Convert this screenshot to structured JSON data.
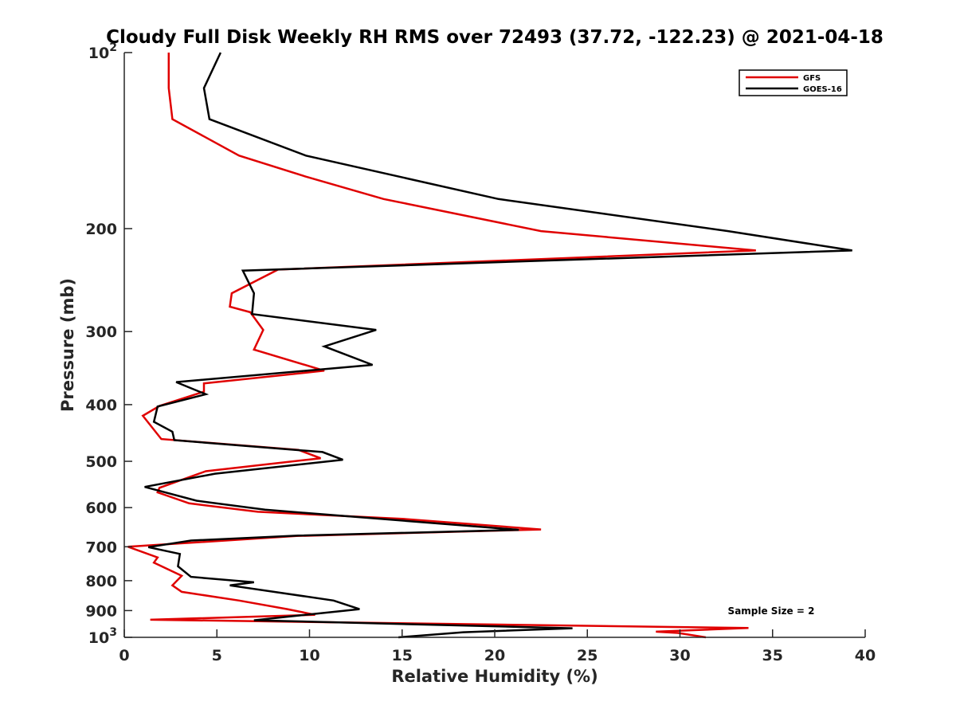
{
  "chart_data": {
    "type": "line",
    "title": "Cloudy Full Disk Weekly RH RMS over 72493 (37.72, -122.23) @ 2021-04-18",
    "xlabel": "Relative Humidity (%)",
    "ylabel": "Pressure (mb)",
    "xlim": [
      0,
      40
    ],
    "ylim": [
      100,
      1000
    ],
    "yscale": "log",
    "y_reversed": true,
    "grid": false,
    "legend_position": "top-right",
    "x_ticks": [
      0,
      5,
      10,
      15,
      20,
      25,
      30,
      35,
      40
    ],
    "y_ticks": [
      {
        "value": 100,
        "label": "10",
        "sup": "2"
      },
      {
        "value": 200,
        "label": "200"
      },
      {
        "value": 300,
        "label": "300"
      },
      {
        "value": 400,
        "label": "400"
      },
      {
        "value": 500,
        "label": "500"
      },
      {
        "value": 600,
        "label": "600"
      },
      {
        "value": 700,
        "label": "700"
      },
      {
        "value": 800,
        "label": "800"
      },
      {
        "value": 900,
        "label": "900"
      },
      {
        "value": 1000,
        "label": "10",
        "sup": "3"
      }
    ],
    "annotation": "Sample Size = 2",
    "series": [
      {
        "name": "GFS",
        "color": "#e00000",
        "points": [
          [
            2.4,
            100
          ],
          [
            2.4,
            115
          ],
          [
            2.6,
            130
          ],
          [
            6.2,
            150
          ],
          [
            9.8,
            163
          ],
          [
            14,
            178
          ],
          [
            22.5,
            202
          ],
          [
            34.1,
            218
          ],
          [
            8.3,
            235
          ],
          [
            5.8,
            258
          ],
          [
            5.7,
            272
          ],
          [
            6.8,
            278
          ],
          [
            7.5,
            298
          ],
          [
            7.0,
            322
          ],
          [
            10.8,
            350
          ],
          [
            4.3,
            368
          ],
          [
            4.3,
            380
          ],
          [
            1.9,
            402
          ],
          [
            1.0,
            418
          ],
          [
            2.0,
            458
          ],
          [
            9.4,
            478
          ],
          [
            10.6,
            494
          ],
          [
            4.4,
            520
          ],
          [
            1.9,
            555
          ],
          [
            1.8,
            565
          ],
          [
            3.5,
            590
          ],
          [
            7.2,
            610
          ],
          [
            15,
            627
          ],
          [
            22.5,
            654
          ],
          [
            9.3,
            671
          ],
          [
            0.2,
            700
          ],
          [
            1.8,
            730
          ],
          [
            1.6,
            745
          ],
          [
            3.1,
            785
          ],
          [
            2.6,
            815
          ],
          [
            3.1,
            836
          ],
          [
            6.2,
            865
          ],
          [
            8.8,
            895
          ],
          [
            10.3,
            915
          ],
          [
            1.4,
            933
          ],
          [
            33.7,
            964
          ],
          [
            28.7,
            978
          ],
          [
            29.9,
            983
          ],
          [
            31.4,
            1000
          ]
        ]
      },
      {
        "name": "GOES-16",
        "color": "#000000",
        "points": [
          [
            5.2,
            100
          ],
          [
            4.3,
            115
          ],
          [
            4.6,
            130
          ],
          [
            9.8,
            150
          ],
          [
            20.2,
            178
          ],
          [
            32.6,
            202
          ],
          [
            39.3,
            218
          ],
          [
            6.4,
            236
          ],
          [
            7.0,
            258
          ],
          [
            6.9,
            280
          ],
          [
            13.6,
            298
          ],
          [
            10.8,
            318
          ],
          [
            13.4,
            342
          ],
          [
            2.8,
            366
          ],
          [
            4.4,
            384
          ],
          [
            1.8,
            403
          ],
          [
            1.6,
            428
          ],
          [
            2.6,
            445
          ],
          [
            2.7,
            460
          ],
          [
            10.7,
            482
          ],
          [
            11.8,
            497
          ],
          [
            4.9,
            525
          ],
          [
            1.1,
            553
          ],
          [
            3.9,
            584
          ],
          [
            7.6,
            605
          ],
          [
            21.3,
            655
          ],
          [
            9.4,
            670
          ],
          [
            3.6,
            683
          ],
          [
            1.3,
            701
          ],
          [
            3.0,
            720
          ],
          [
            2.9,
            756
          ],
          [
            3.6,
            788
          ],
          [
            7.0,
            805
          ],
          [
            5.7,
            815
          ],
          [
            11.3,
            865
          ],
          [
            12.7,
            895
          ],
          [
            7.0,
            935
          ],
          [
            24.2,
            965
          ],
          [
            18.3,
            980
          ],
          [
            14.8,
            1000
          ]
        ]
      }
    ]
  }
}
